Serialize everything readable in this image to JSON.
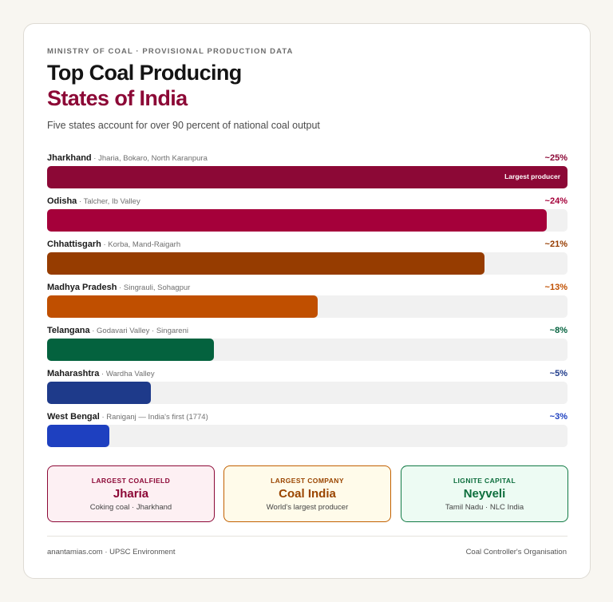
{
  "header": {
    "kicker": "MINISTRY OF COAL · PROVISIONAL PRODUCTION DATA",
    "title_line1": "Top Coal Producing",
    "title_line2": "States of India",
    "subtitle": "Five states account for over 90 percent of national coal output"
  },
  "chart_data": {
    "type": "bar",
    "orientation": "horizontal",
    "categories": [
      "Jharkhand",
      "Odisha",
      "Chhattisgarh",
      "Madhya Pradesh",
      "Telangana",
      "Maharashtra",
      "West Bengal"
    ],
    "values": [
      25,
      24,
      21,
      13,
      8,
      5,
      3
    ],
    "value_labels": [
      "~25%",
      "~24%",
      "~21%",
      "~13%",
      "~8%",
      "~5%",
      "~3%"
    ],
    "regions": [
      "Jharia, Bokaro, North Karanpura",
      "Talcher, Ib Valley",
      "Korba, Mand-Raigarh",
      "Singrauli, Sohagpur",
      "Godavari Valley · Singareni",
      "Wardha Valley",
      "Raniganj — India's first (1774)"
    ],
    "colors": [
      "#8c0836",
      "#a5003a",
      "#963c00",
      "#c04f00",
      "#04623e",
      "#1e3a8a",
      "#1e40c0"
    ],
    "annotations": [
      {
        "category": "Jharkhand",
        "text": "Largest producer"
      }
    ],
    "xlim": [
      0,
      25
    ]
  },
  "boxes": [
    {
      "label": "LARGEST COALFIELD",
      "value": "Jharia",
      "desc": "Coking coal · Jharkhand",
      "border": "#8c0836",
      "bg": "#fdf0f3",
      "accent": "#8c0836"
    },
    {
      "label": "LARGEST COMPANY",
      "value": "Coal India",
      "desc": "World's largest producer",
      "border": "#c26000",
      "bg": "#fffbea",
      "accent": "#9a4500"
    },
    {
      "label": "LIGNITE CAPITAL",
      "value": "Neyveli",
      "desc": "Tamil Nadu · NLC India",
      "border": "#127a45",
      "bg": "#edfbf3",
      "accent": "#0d6e3d"
    }
  ],
  "footer": {
    "left": "anantamias.com · UPSC Environment",
    "right": "Coal Controller's Organisation"
  }
}
